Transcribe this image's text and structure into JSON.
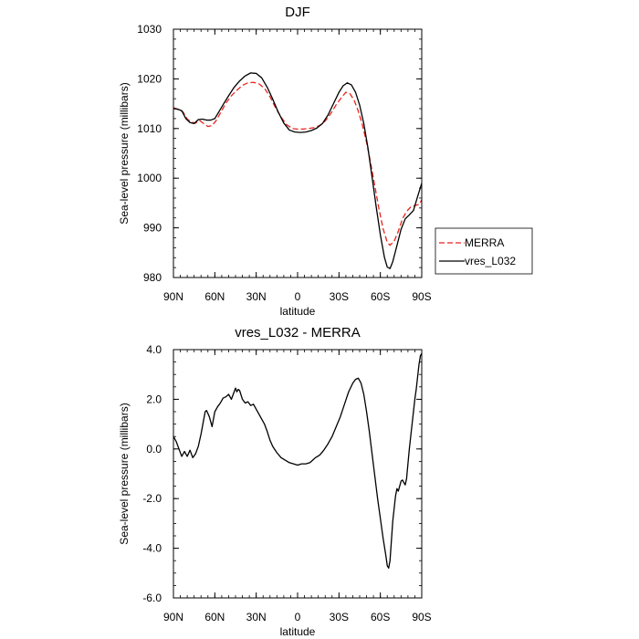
{
  "chart_data": [
    {
      "type": "line",
      "title": "DJF",
      "xlabel": "latitude",
      "ylabel": "Sea-level pressure (millibars)",
      "xlim": [
        90,
        -90
      ],
      "ylim": [
        980,
        1030
      ],
      "x_ticks": [
        90,
        60,
        30,
        0,
        -30,
        -60,
        -90
      ],
      "x_tick_labels": [
        "90N",
        "60N",
        "30N",
        "0",
        "30S",
        "60S",
        "90S"
      ],
      "y_ticks": [
        980,
        990,
        1000,
        1010,
        1020,
        1030
      ],
      "y_tick_labels": [
        "980",
        "990",
        "1000",
        "1010",
        "1020",
        "1030"
      ],
      "legend": {
        "placement": "outside-right",
        "entries": [
          "MERRA",
          "vres_L032"
        ]
      },
      "series": [
        {
          "name": "MERRA",
          "color": "#e8231c",
          "dash": true,
          "points": [
            [
              90,
              1014.2
            ],
            [
              86,
              1013.8
            ],
            [
              83,
              1013.3
            ],
            [
              80,
              1011.9
            ],
            [
              77,
              1011.3
            ],
            [
              74,
              1011.1
            ],
            [
              71,
              1011.6
            ],
            [
              68,
              1011.0
            ],
            [
              65,
              1010.4
            ],
            [
              62,
              1010.6
            ],
            [
              59,
              1011.6
            ],
            [
              56,
              1013.1
            ],
            [
              52,
              1015.1
            ],
            [
              48,
              1016.6
            ],
            [
              44,
              1017.7
            ],
            [
              40,
              1018.7
            ],
            [
              36,
              1019.2
            ],
            [
              32,
              1019.3
            ],
            [
              28,
              1019.0
            ],
            [
              24,
              1018.1
            ],
            [
              20,
              1016.4
            ],
            [
              16,
              1014.2
            ],
            [
              12,
              1012.3
            ],
            [
              8,
              1010.8
            ],
            [
              4,
              1010.0
            ],
            [
              0,
              1009.9
            ],
            [
              -4,
              1009.9
            ],
            [
              -8,
              1010.0
            ],
            [
              -12,
              1010.2
            ],
            [
              -16,
              1010.6
            ],
            [
              -20,
              1011.5
            ],
            [
              -24,
              1013.0
            ],
            [
              -28,
              1014.8
            ],
            [
              -32,
              1016.3
            ],
            [
              -35,
              1017.3
            ],
            [
              -38,
              1017.0
            ],
            [
              -41,
              1015.7
            ],
            [
              -44,
              1013.5
            ],
            [
              -47,
              1010.7
            ],
            [
              -50,
              1007.2
            ],
            [
              -53,
              1003.0
            ],
            [
              -56,
              998.4
            ],
            [
              -59,
              993.8
            ],
            [
              -62,
              989.8
            ],
            [
              -65,
              987.1
            ],
            [
              -67,
              986.5
            ],
            [
              -70,
              987.3
            ],
            [
              -73,
              989.3
            ],
            [
              -76,
              991.8
            ],
            [
              -79,
              993.3
            ],
            [
              -82,
              994.2
            ],
            [
              -85,
              994.5
            ],
            [
              -88,
              994.7
            ],
            [
              -90,
              995.6
            ]
          ]
        },
        {
          "name": "vres_L032",
          "color": "#000000",
          "dash": false,
          "points": [
            [
              90,
              1014.0
            ],
            [
              87,
              1013.9
            ],
            [
              84,
              1013.6
            ],
            [
              81,
              1012.0
            ],
            [
              78,
              1011.2
            ],
            [
              75,
              1011.0
            ],
            [
              72,
              1011.8
            ],
            [
              69,
              1011.9
            ],
            [
              66,
              1011.7
            ],
            [
              63,
              1011.7
            ],
            [
              60,
              1012.0
            ],
            [
              57,
              1013.4
            ],
            [
              54,
              1014.8
            ],
            [
              50,
              1016.6
            ],
            [
              46,
              1018.3
            ],
            [
              42,
              1019.6
            ],
            [
              38,
              1020.6
            ],
            [
              34,
              1021.2
            ],
            [
              30,
              1021.1
            ],
            [
              26,
              1020.2
            ],
            [
              22,
              1018.3
            ],
            [
              18,
              1015.9
            ],
            [
              14,
              1013.3
            ],
            [
              10,
              1011.1
            ],
            [
              6,
              1009.7
            ],
            [
              2,
              1009.3
            ],
            [
              -2,
              1009.2
            ],
            [
              -6,
              1009.3
            ],
            [
              -10,
              1009.6
            ],
            [
              -14,
              1010.1
            ],
            [
              -18,
              1011.0
            ],
            [
              -22,
              1012.7
            ],
            [
              -26,
              1015.0
            ],
            [
              -30,
              1017.3
            ],
            [
              -33,
              1018.6
            ],
            [
              -36,
              1019.2
            ],
            [
              -39,
              1018.8
            ],
            [
              -42,
              1017.3
            ],
            [
              -45,
              1014.7
            ],
            [
              -48,
              1011.0
            ],
            [
              -51,
              1006.1
            ],
            [
              -54,
              1000.2
            ],
            [
              -57,
              994.2
            ],
            [
              -60,
              988.6
            ],
            [
              -63,
              984.0
            ],
            [
              -65,
              982.1
            ],
            [
              -67,
              981.8
            ],
            [
              -69,
              983.2
            ],
            [
              -72,
              986.4
            ],
            [
              -75,
              989.7
            ],
            [
              -78,
              991.8
            ],
            [
              -81,
              992.6
            ],
            [
              -84,
              993.5
            ],
            [
              -87,
              996.3
            ],
            [
              -90,
              999.0
            ]
          ]
        }
      ]
    },
    {
      "type": "line",
      "title": "vres_L032 - MERRA",
      "xlabel": "latitude",
      "ylabel": "Sea-level pressure (millibars)",
      "xlim": [
        90,
        -90
      ],
      "ylim": [
        -6,
        4
      ],
      "x_ticks": [
        90,
        60,
        30,
        0,
        -30,
        -60,
        -90
      ],
      "x_tick_labels": [
        "90N",
        "60N",
        "30N",
        "0",
        "30S",
        "60S",
        "90S"
      ],
      "y_ticks": [
        -6,
        -4,
        -2,
        0,
        2,
        4
      ],
      "y_tick_labels": [
        "-6.0",
        "-4.0",
        "-2.0",
        "0.0",
        "2.0",
        "4.0"
      ],
      "series": [
        {
          "name": "vres_L032 - MERRA",
          "color": "#000000",
          "dash": false,
          "points": [
            [
              90,
              0.5
            ],
            [
              88,
              0.3
            ],
            [
              86,
              0.0
            ],
            [
              84,
              -0.3
            ],
            [
              82,
              -0.1
            ],
            [
              80,
              -0.3
            ],
            [
              78,
              -0.05
            ],
            [
              76,
              -0.35
            ],
            [
              74,
              -0.2
            ],
            [
              72,
              0.1
            ],
            [
              70,
              0.6
            ],
            [
              68,
              1.2
            ],
            [
              67,
              1.5
            ],
            [
              66,
              1.55
            ],
            [
              64,
              1.3
            ],
            [
              62,
              0.9
            ],
            [
              61,
              1.2
            ],
            [
              60,
              1.5
            ],
            [
              58,
              1.7
            ],
            [
              56,
              1.85
            ],
            [
              54,
              2.05
            ],
            [
              52,
              2.1
            ],
            [
              50,
              2.2
            ],
            [
              48,
              2.0
            ],
            [
              46,
              2.3
            ],
            [
              45,
              2.45
            ],
            [
              44,
              2.3
            ],
            [
              43,
              2.4
            ],
            [
              42,
              2.35
            ],
            [
              40,
              2.0
            ],
            [
              38,
              1.85
            ],
            [
              36,
              1.9
            ],
            [
              34,
              1.75
            ],
            [
              32,
              1.8
            ],
            [
              30,
              1.6
            ],
            [
              28,
              1.4
            ],
            [
              26,
              1.2
            ],
            [
              24,
              1.0
            ],
            [
              22,
              0.7
            ],
            [
              20,
              0.35
            ],
            [
              18,
              0.1
            ],
            [
              15,
              -0.15
            ],
            [
              12,
              -0.35
            ],
            [
              9,
              -0.45
            ],
            [
              6,
              -0.55
            ],
            [
              3,
              -0.6
            ],
            [
              0,
              -0.65
            ],
            [
              -3,
              -0.6
            ],
            [
              -6,
              -0.6
            ],
            [
              -9,
              -0.55
            ],
            [
              -11,
              -0.45
            ],
            [
              -13,
              -0.35
            ],
            [
              -16,
              -0.25
            ],
            [
              -19,
              -0.05
            ],
            [
              -22,
              0.2
            ],
            [
              -25,
              0.5
            ],
            [
              -28,
              0.9
            ],
            [
              -31,
              1.3
            ],
            [
              -34,
              1.8
            ],
            [
              -37,
              2.3
            ],
            [
              -40,
              2.65
            ],
            [
              -42,
              2.8
            ],
            [
              -44,
              2.85
            ],
            [
              -46,
              2.65
            ],
            [
              -48,
              2.2
            ],
            [
              -50,
              1.5
            ],
            [
              -52,
              0.7
            ],
            [
              -54,
              -0.2
            ],
            [
              -56,
              -1.1
            ],
            [
              -58,
              -2.0
            ],
            [
              -60,
              -2.8
            ],
            [
              -62,
              -3.6
            ],
            [
              -64,
              -4.3
            ],
            [
              -65,
              -4.7
            ],
            [
              -66,
              -4.8
            ],
            [
              -67,
              -4.5
            ],
            [
              -68,
              -3.7
            ],
            [
              -69,
              -2.9
            ],
            [
              -70,
              -2.4
            ],
            [
              -71,
              -1.9
            ],
            [
              -72,
              -1.6
            ],
            [
              -73,
              -1.7
            ],
            [
              -74,
              -1.5
            ],
            [
              -75,
              -1.3
            ],
            [
              -76,
              -1.25
            ],
            [
              -77,
              -1.35
            ],
            [
              -78,
              -1.45
            ],
            [
              -79,
              -1.2
            ],
            [
              -80,
              -0.6
            ],
            [
              -81,
              0.0
            ],
            [
              -82,
              0.5
            ],
            [
              -83,
              1.0
            ],
            [
              -84,
              1.5
            ],
            [
              -85,
              2.0
            ],
            [
              -86,
              2.4
            ],
            [
              -87,
              2.9
            ],
            [
              -88,
              3.4
            ],
            [
              -89,
              3.75
            ],
            [
              -90,
              3.85
            ]
          ]
        }
      ]
    }
  ]
}
